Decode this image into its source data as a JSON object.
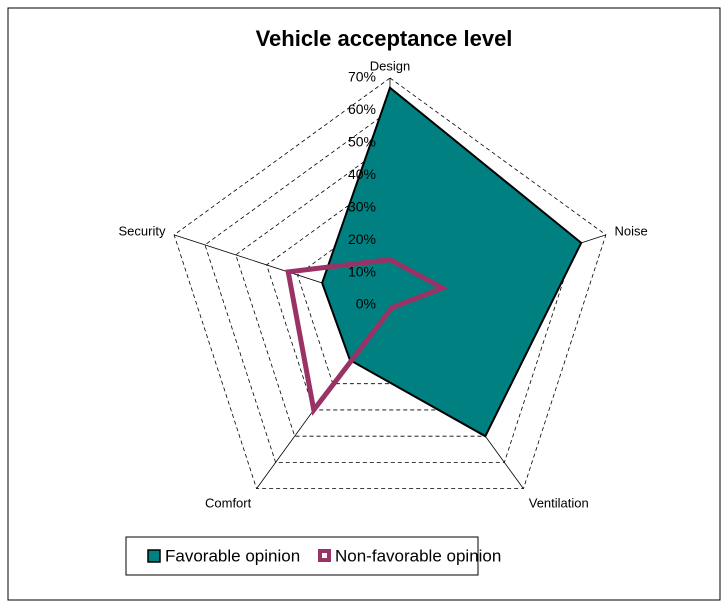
{
  "chart_data": {
    "type": "radar",
    "title": "Vehicle acceptance level",
    "categories": [
      "Design",
      "Noise",
      "Ventilation",
      "Comfort",
      "Security"
    ],
    "series": [
      {
        "name": "Favorable opinion",
        "color": "#008080",
        "values": [
          67,
          62,
          50,
          21,
          22
        ]
      },
      {
        "name": "Non-favorable opinion",
        "color": "#993366",
        "values": [
          14,
          17,
          1,
          40,
          33
        ]
      }
    ],
    "ylim": [
      0,
      70
    ],
    "yticks": [
      {
        "value": 0,
        "label": "0%"
      },
      {
        "value": 10,
        "label": "10%"
      },
      {
        "value": 20,
        "label": "20%"
      },
      {
        "value": 30,
        "label": "30%"
      },
      {
        "value": 40,
        "label": "40%"
      },
      {
        "value": 50,
        "label": "50%"
      },
      {
        "value": 60,
        "label": "60%"
      },
      {
        "value": 70,
        "label": "70%"
      }
    ],
    "grid": true
  }
}
